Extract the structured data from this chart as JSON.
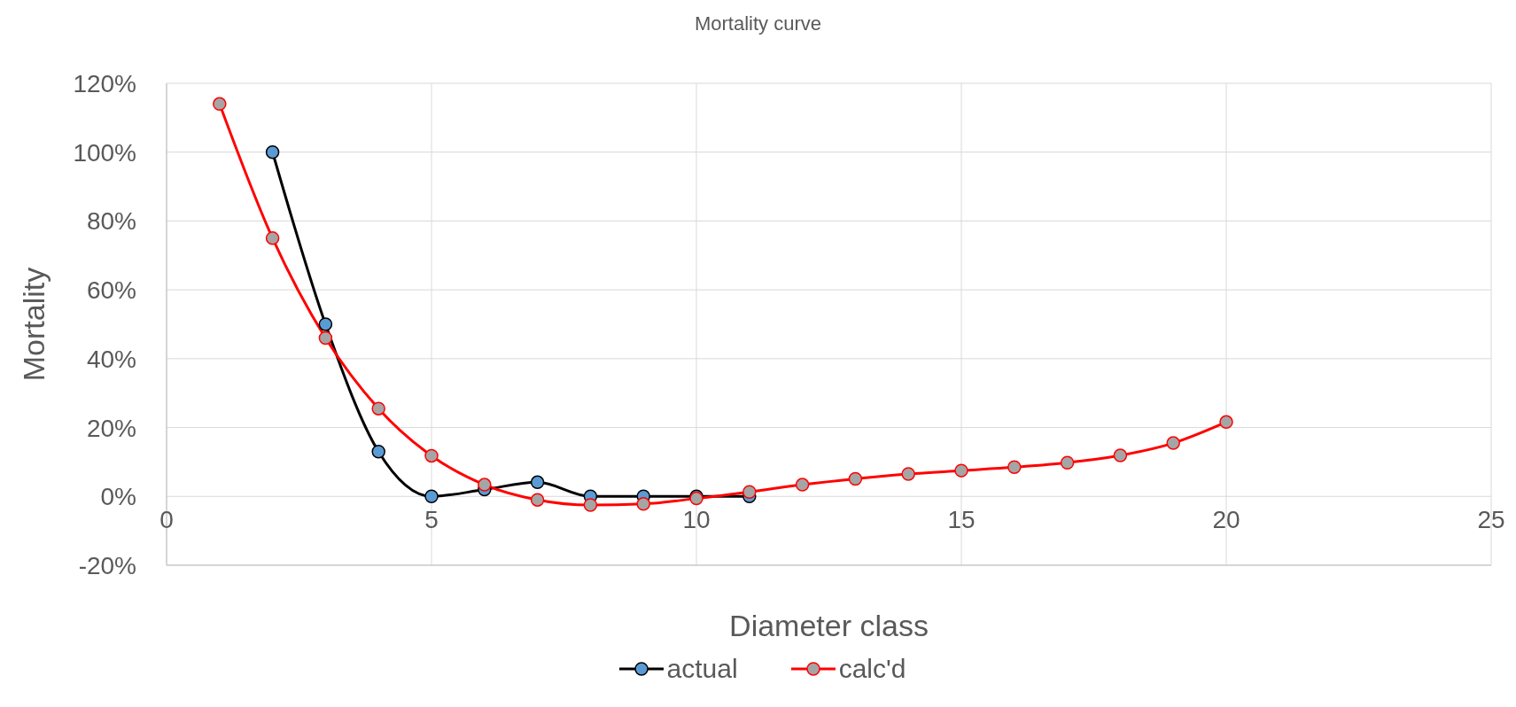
{
  "chart_data": {
    "type": "line",
    "title": "Mortality curve",
    "xlabel": "Diameter class",
    "ylabel": "Mortality",
    "xlim": [
      0,
      25
    ],
    "xticks": [
      0,
      5,
      10,
      15,
      20,
      25
    ],
    "ylim": [
      -20,
      120
    ],
    "yticks": [
      {
        "value": -20,
        "label": "-20%"
      },
      {
        "value": 0,
        "label": "0%"
      },
      {
        "value": 20,
        "label": "20%"
      },
      {
        "value": 40,
        "label": "40%"
      },
      {
        "value": 60,
        "label": "60%"
      },
      {
        "value": 80,
        "label": "80%"
      },
      {
        "value": 100,
        "label": "100%"
      },
      {
        "value": 120,
        "label": "120%"
      }
    ],
    "grid": true,
    "legend": "bottom",
    "marker": "circle",
    "line_style": "solid",
    "series": [
      {
        "name": "actual",
        "color": "#000000",
        "x": [
          2,
          3,
          4,
          5,
          6,
          7,
          8,
          9,
          10,
          11
        ],
        "values": [
          100,
          50,
          13,
          0,
          2,
          4.1,
          0,
          0,
          0,
          0
        ]
      },
      {
        "name": "calc'd",
        "color": "#ff0000",
        "x": [
          1,
          2,
          3,
          4,
          5,
          6,
          7,
          8,
          9,
          10,
          11,
          12,
          13,
          14,
          15,
          16,
          17,
          18,
          19,
          20
        ],
        "values": [
          114,
          75,
          46,
          25.5,
          11.8,
          3.4,
          -1,
          -2.5,
          -2.2,
          -0.6,
          1.3,
          3.4,
          5.1,
          6.5,
          7.5,
          8.5,
          9.8,
          11.9,
          15.5,
          21.6
        ]
      }
    ]
  }
}
